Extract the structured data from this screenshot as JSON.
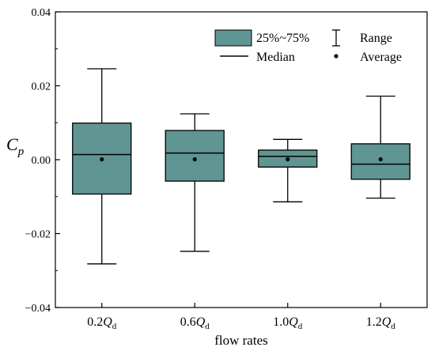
{
  "chart_data": {
    "type": "box",
    "xlabel": "flow rates",
    "ylabel": {
      "main": "C",
      "sub": "p"
    },
    "ylim": [
      -0.04,
      0.04
    ],
    "y_ticks": [
      {
        "value": 0.04,
        "label": "0.04"
      },
      {
        "value": 0.02,
        "label": "0.02"
      },
      {
        "value": 0.0,
        "label": "0.00"
      },
      {
        "value": -0.02,
        "label": "−0.02"
      },
      {
        "value": -0.04,
        "label": "−0.04"
      }
    ],
    "categories": [
      {
        "prefix": "0.2",
        "q": "Q",
        "sub": "d"
      },
      {
        "prefix": "0.6",
        "q": "Q",
        "sub": "d"
      },
      {
        "prefix": "1.0",
        "q": "Q",
        "sub": "d"
      },
      {
        "prefix": "1.2",
        "q": "Q",
        "sub": "d"
      }
    ],
    "boxes": [
      {
        "min": -0.0282,
        "q1": -0.0093,
        "median": 0.0014,
        "q3": 0.0099,
        "max": 0.0246,
        "mean": 0.0001
      },
      {
        "min": -0.0248,
        "q1": -0.0058,
        "median": 0.0018,
        "q3": 0.0079,
        "max": 0.0124,
        "mean": 0.0001
      },
      {
        "min": -0.0114,
        "q1": -0.002,
        "median": 0.0009,
        "q3": 0.0026,
        "max": 0.0055,
        "mean": 0.0001
      },
      {
        "min": -0.0104,
        "q1": -0.0053,
        "median": -0.0012,
        "q3": 0.0043,
        "max": 0.0172,
        "mean": 0.0001
      }
    ],
    "box_color": "#5f9592",
    "grid": false,
    "legend_position": "top-right",
    "legend": {
      "box_label": "25%~75%",
      "range_label": "Range",
      "median_label": "Median",
      "average_label": "Average"
    }
  }
}
